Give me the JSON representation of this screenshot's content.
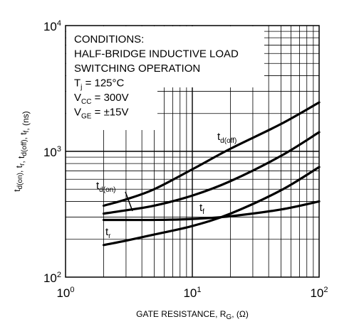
{
  "chart_data": {
    "type": "line",
    "x_scale": "log",
    "y_scale": "log",
    "xlim": [
      1,
      100
    ],
    "ylim": [
      100,
      10000
    ],
    "grid": true,
    "xlabel": {
      "main": "GATE RESISTANCE, R",
      "sub": "G",
      "tail": ", (Ω)"
    },
    "ylabel_parts": [
      {
        "t": "t",
        "s": "d(on)"
      },
      {
        "t": ", t",
        "s": "r"
      },
      {
        "t": ", t",
        "s": "d(off)"
      },
      {
        "t": ", t",
        "s": "f"
      },
      {
        "t": ", (ns)",
        "s": ""
      }
    ],
    "x_ticks": [
      {
        "base": "10",
        "exp": "0",
        "value": 1
      },
      {
        "base": "10",
        "exp": "1",
        "value": 10
      },
      {
        "base": "10",
        "exp": "2",
        "value": 100
      }
    ],
    "y_ticks": [
      {
        "base": "10",
        "exp": "2",
        "value": 100
      },
      {
        "base": "10",
        "exp": "3",
        "value": 1000
      },
      {
        "base": "10",
        "exp": "4",
        "value": 10000
      }
    ],
    "conditions": [
      {
        "t": "CONDITIONS:",
        "s": "",
        "tail": ""
      },
      {
        "t": "HALF-BRIDGE INDUCTIVE LOAD",
        "s": "",
        "tail": ""
      },
      {
        "t": "SWITCHING OPERATION",
        "s": "",
        "tail": ""
      },
      {
        "t": "T",
        "s": "j",
        "tail": " = 125°C"
      },
      {
        "t": "V",
        "s": "CC",
        "tail": " = 300V"
      },
      {
        "t": "V",
        "s": "GE",
        "tail": " = ±15V"
      }
    ],
    "series": [
      {
        "id": "td_off",
        "label_main": "t",
        "label_sub": "d(off)",
        "x": [
          2,
          3,
          5,
          10,
          20,
          50,
          100
        ],
        "y": [
          370,
          415,
          500,
          720,
          1050,
          1650,
          2450
        ]
      },
      {
        "id": "td_on",
        "label_main": "t",
        "label_sub": "d(on)",
        "x": [
          2,
          3,
          5,
          10,
          20,
          50,
          100
        ],
        "y": [
          320,
          340,
          370,
          445,
          580,
          920,
          1420
        ]
      },
      {
        "id": "tf",
        "label_main": "t",
        "label_sub": "f",
        "x": [
          2,
          3,
          5,
          10,
          20,
          50,
          100
        ],
        "y": [
          285,
          285,
          285,
          290,
          305,
          345,
          400
        ]
      },
      {
        "id": "tr",
        "label_main": "t",
        "label_sub": "r",
        "x": [
          2,
          3,
          5,
          10,
          20,
          50,
          100
        ],
        "y": [
          180,
          195,
          218,
          255,
          320,
          490,
          750
        ]
      }
    ]
  }
}
